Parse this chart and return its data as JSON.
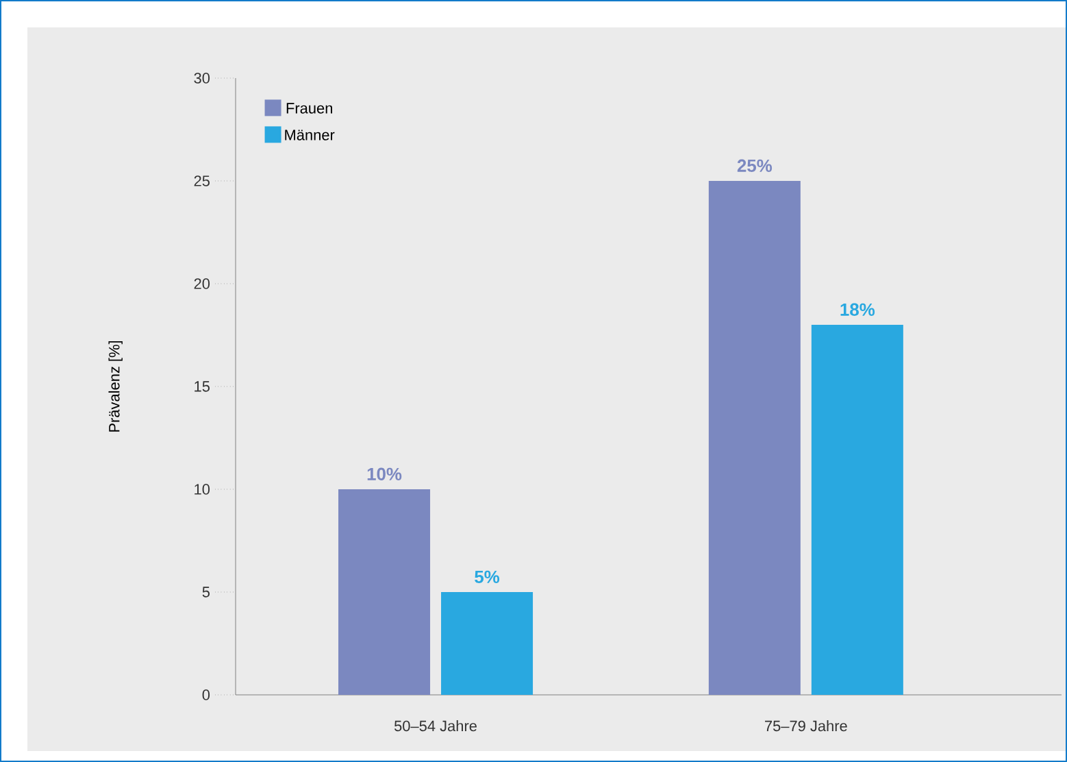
{
  "chart_data": {
    "type": "bar",
    "ylabel": "Prävalenz [%]",
    "categories": [
      "50–54 Jahre",
      "75–79 Jahre"
    ],
    "series": [
      {
        "name": "Frauen",
        "color": "#7b88c0",
        "values": [
          10,
          25
        ],
        "value_labels": [
          "10%",
          "25%"
        ]
      },
      {
        "name": "Männer",
        "color": "#29a8e0",
        "values": [
          5,
          18
        ],
        "value_labels": [
          "5%",
          "18%"
        ]
      }
    ],
    "ylim": [
      0,
      30
    ],
    "yticks": [
      0,
      5,
      10,
      15,
      20,
      25,
      30
    ],
    "legend": "top left"
  }
}
